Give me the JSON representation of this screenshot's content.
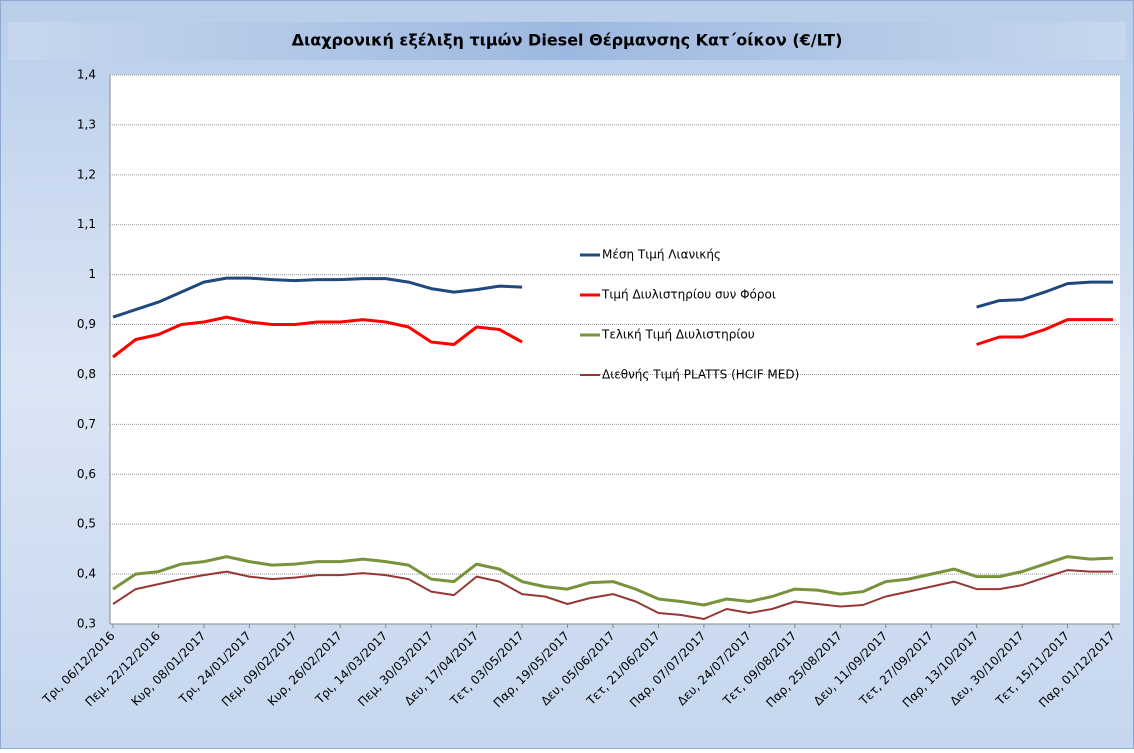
{
  "chart_data": {
    "type": "line",
    "title": "Διαχρονική εξέλιξη τιμών Diesel Θέρμανσης Κατ΄οίκον (€/LT)",
    "categories": [
      "Τρι, 06/12/2016",
      null,
      "Πεμ, 22/12/2016",
      null,
      "Κυρ, 08/01/2017",
      null,
      "Τρι, 24/01/2017",
      null,
      "Πεμ, 09/02/2017",
      null,
      "Κυρ, 26/02/2017",
      null,
      "Τρι, 14/03/2017",
      null,
      "Πεμ, 30/03/2017",
      null,
      "Δευ, 17/04/2017",
      null,
      "Τετ, 03/05/2017",
      null,
      "Παρ, 19/05/2017",
      null,
      "Δευ, 05/06/2017",
      null,
      "Τετ, 21/06/2017",
      null,
      "Παρ, 07/07/2017",
      null,
      "Δευ, 24/07/2017",
      null,
      "Τετ, 09/08/2017",
      null,
      "Παρ, 25/08/2017",
      null,
      "Δευ, 11/09/2017",
      null,
      "Τετ, 27/09/2017",
      null,
      "Παρ, 13/10/2017",
      null,
      "Δευ, 30/10/2017",
      null,
      "Τετ, 15/11/2017",
      null,
      "Παρ, 01/12/2017"
    ],
    "series": [
      {
        "name": "Μέση Τιμή Λιανικής",
        "color": "#1f497d",
        "values": [
          0.915,
          0.93,
          0.945,
          0.965,
          0.985,
          0.993,
          0.993,
          0.99,
          0.988,
          0.99,
          0.99,
          0.992,
          0.992,
          0.985,
          0.972,
          0.965,
          0.97,
          0.977,
          0.975,
          null,
          null,
          null,
          null,
          null,
          null,
          null,
          null,
          null,
          null,
          null,
          null,
          null,
          null,
          null,
          null,
          null,
          null,
          null,
          0.935,
          0.948,
          0.95,
          0.965,
          0.982,
          0.985,
          0.985
        ]
      },
      {
        "name": "Τιμή Διυλιστηρίου συν Φόροι",
        "color": "#ff0000",
        "values": [
          0.835,
          0.87,
          0.88,
          0.9,
          0.905,
          0.915,
          0.905,
          0.9,
          0.9,
          0.905,
          0.905,
          0.91,
          0.905,
          0.895,
          0.865,
          0.86,
          0.895,
          0.89,
          0.865,
          null,
          null,
          null,
          null,
          null,
          null,
          null,
          null,
          null,
          null,
          null,
          null,
          null,
          null,
          null,
          null,
          null,
          null,
          null,
          0.86,
          0.875,
          0.875,
          0.89,
          0.91,
          0.91,
          0.91
        ]
      },
      {
        "name": "Τελική Τιμή Διυλιστηρίου",
        "color": "#77933c",
        "values": [
          0.37,
          0.4,
          0.405,
          0.42,
          0.425,
          0.435,
          0.425,
          0.418,
          0.42,
          0.425,
          0.425,
          0.43,
          0.425,
          0.418,
          0.39,
          0.385,
          0.42,
          0.41,
          0.385,
          0.375,
          0.37,
          0.383,
          0.385,
          0.37,
          0.35,
          0.345,
          0.338,
          0.35,
          0.345,
          0.355,
          0.37,
          0.368,
          0.36,
          0.365,
          0.385,
          0.39,
          0.4,
          0.41,
          0.395,
          0.395,
          0.405,
          0.42,
          0.435,
          0.43,
          0.432
        ]
      },
      {
        "name": "Διεθνής Τιμή PLATTS (HCIF MED)",
        "color": "#953735",
        "values": [
          0.34,
          0.37,
          0.38,
          0.39,
          0.398,
          0.405,
          0.395,
          0.39,
          0.393,
          0.398,
          0.398,
          0.402,
          0.398,
          0.39,
          0.365,
          0.358,
          0.395,
          0.385,
          0.36,
          0.355,
          0.34,
          0.352,
          0.36,
          0.345,
          0.322,
          0.318,
          0.31,
          0.33,
          0.322,
          0.33,
          0.345,
          0.34,
          0.335,
          0.338,
          0.355,
          0.365,
          0.375,
          0.385,
          0.37,
          0.37,
          0.378,
          0.393,
          0.408,
          0.405,
          0.405
        ]
      }
    ],
    "ylim": [
      0.3,
      1.4
    ],
    "yticks": [
      {
        "value": 0.3,
        "label": "0,3"
      },
      {
        "value": 0.4,
        "label": "0,4"
      },
      {
        "value": 0.5,
        "label": "0,5"
      },
      {
        "value": 0.6,
        "label": "0,6"
      },
      {
        "value": 0.7,
        "label": "0,7"
      },
      {
        "value": 0.8,
        "label": "0,8"
      },
      {
        "value": 0.9,
        "label": "0,9"
      },
      1,
      {
        "value": 1.1,
        "label": "1,1"
      },
      {
        "value": 1.2,
        "label": "1,2"
      },
      {
        "value": 1.3,
        "label": "1,3"
      },
      {
        "value": 1.4,
        "label": "1,4"
      }
    ],
    "grid": true
  }
}
